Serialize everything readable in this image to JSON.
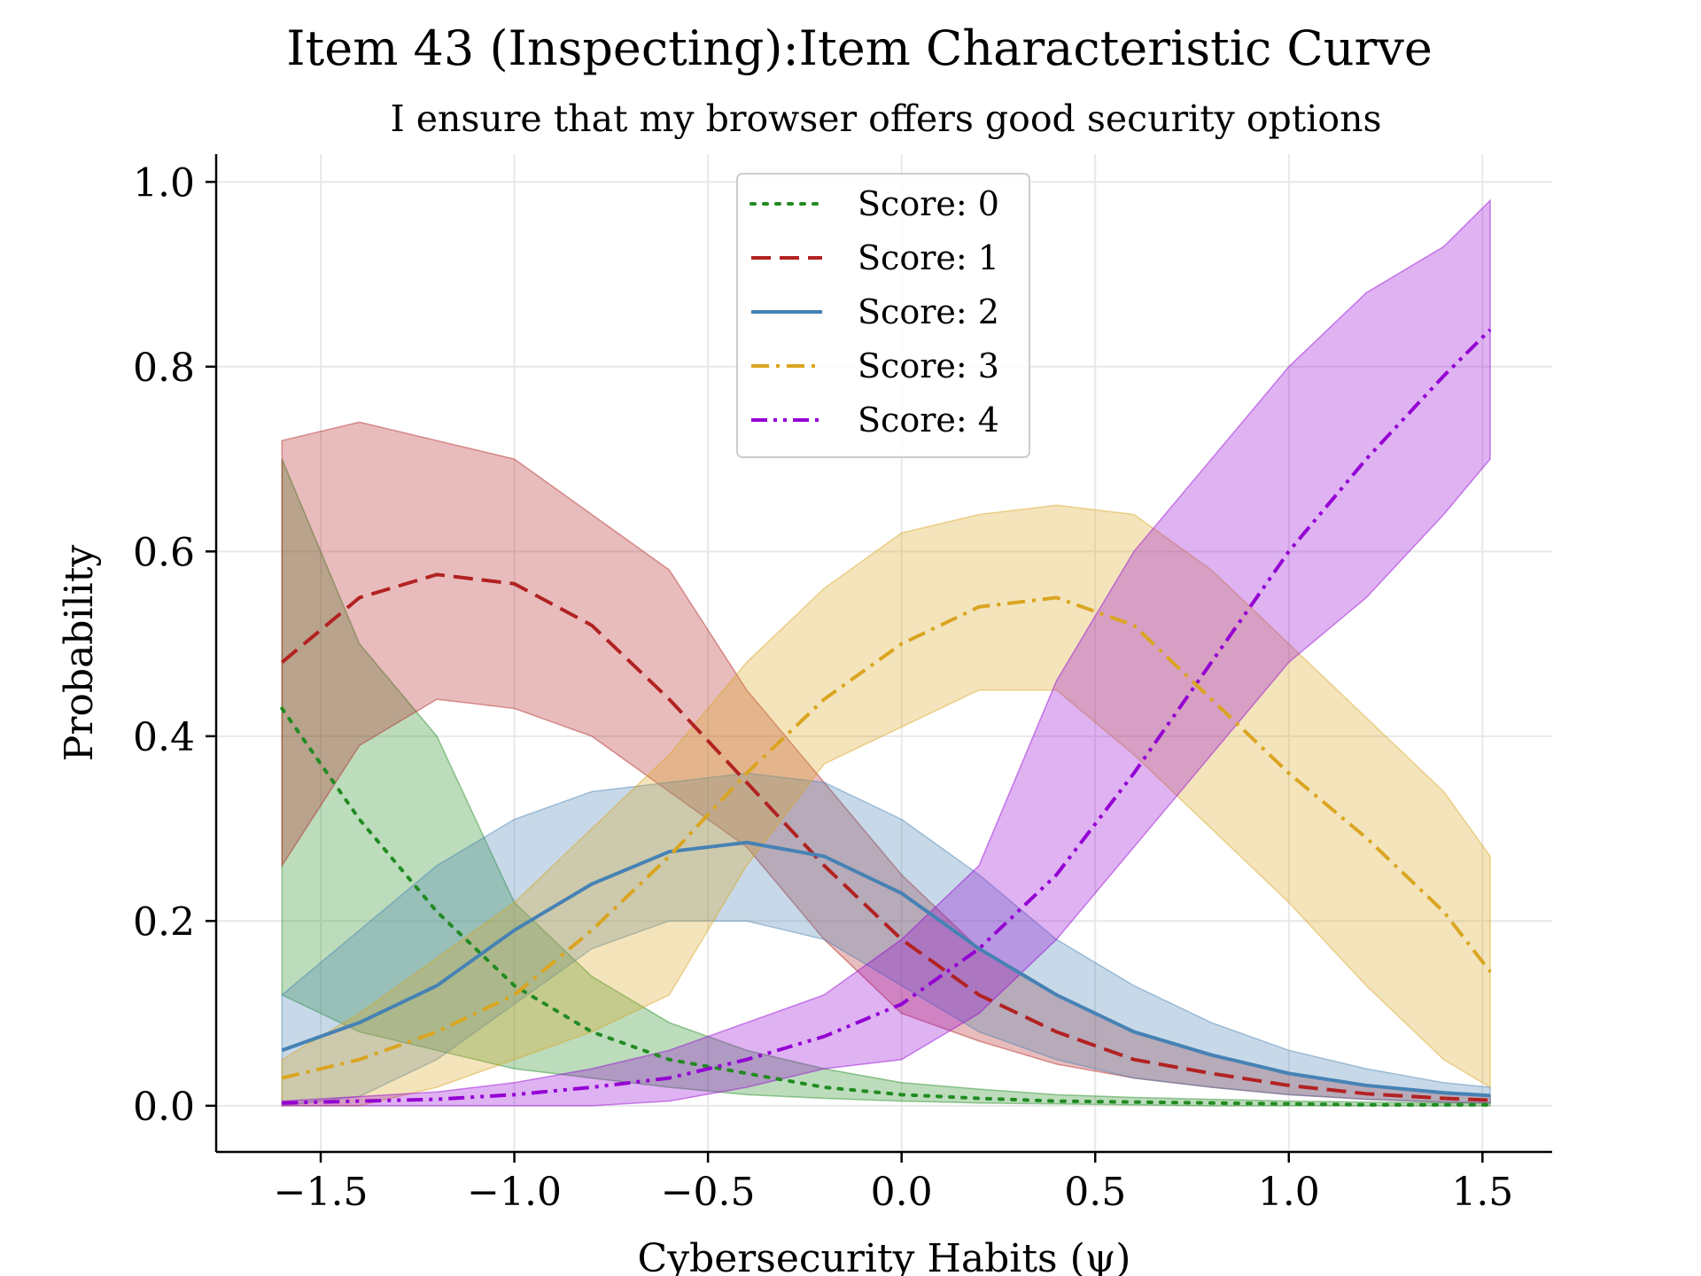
{
  "chart_data": {
    "type": "line",
    "title": "Item 43 (Inspecting):Item Characteristic Curve",
    "subtitle": "I ensure that my browser offers good security options",
    "xlabel": "Cybersecurity Habits (ψ)",
    "ylabel": "Probability",
    "xlim": [
      -1.77,
      1.68
    ],
    "ylim": [
      -0.05,
      1.03
    ],
    "xticks": [
      -1.5,
      -1.0,
      -0.5,
      0.0,
      0.5,
      1.0,
      1.5
    ],
    "xtick_labels": [
      "−1.5",
      "−1.0",
      "−0.5",
      "0.0",
      "0.5",
      "1.0",
      "1.5"
    ],
    "yticks": [
      0.0,
      0.2,
      0.4,
      0.6,
      0.8,
      1.0
    ],
    "ytick_labels": [
      "0.0",
      "0.2",
      "0.4",
      "0.6",
      "0.8",
      "1.0"
    ],
    "grid": true,
    "legend_position": "top-center",
    "x": [
      -1.6,
      -1.4,
      -1.2,
      -1.0,
      -0.8,
      -0.6,
      -0.4,
      -0.2,
      0.0,
      0.2,
      0.4,
      0.6,
      0.8,
      1.0,
      1.2,
      1.4,
      1.52
    ],
    "series": [
      {
        "name": "Score: 0",
        "color": "#228B22",
        "dash": "dotted",
        "values": [
          0.43,
          0.31,
          0.21,
          0.13,
          0.08,
          0.05,
          0.035,
          0.02,
          0.012,
          0.008,
          0.005,
          0.004,
          0.003,
          0.002,
          0.001,
          0.001,
          0.001
        ],
        "lower": [
          0.12,
          0.08,
          0.06,
          0.04,
          0.03,
          0.02,
          0.012,
          0.008,
          0.005,
          0.003,
          0.002,
          0.001,
          0.0,
          0.0,
          0.0,
          0.0,
          0.0
        ],
        "upper": [
          0.7,
          0.5,
          0.4,
          0.22,
          0.14,
          0.09,
          0.06,
          0.04,
          0.025,
          0.018,
          0.012,
          0.009,
          0.007,
          0.005,
          0.004,
          0.003,
          0.003
        ]
      },
      {
        "name": "Score: 1",
        "color": "#B22222",
        "dash": "dashed",
        "values": [
          0.48,
          0.55,
          0.575,
          0.565,
          0.52,
          0.44,
          0.35,
          0.26,
          0.18,
          0.12,
          0.08,
          0.05,
          0.035,
          0.022,
          0.013,
          0.008,
          0.006
        ],
        "lower": [
          0.26,
          0.39,
          0.44,
          0.43,
          0.4,
          0.34,
          0.28,
          0.18,
          0.1,
          0.07,
          0.045,
          0.03,
          0.02,
          0.012,
          0.007,
          0.004,
          0.003
        ],
        "upper": [
          0.72,
          0.74,
          0.72,
          0.7,
          0.64,
          0.58,
          0.45,
          0.35,
          0.25,
          0.17,
          0.12,
          0.08,
          0.055,
          0.035,
          0.022,
          0.014,
          0.011
        ]
      },
      {
        "name": "Score: 2",
        "color": "#4682B4",
        "dash": "solid",
        "values": [
          0.06,
          0.09,
          0.13,
          0.19,
          0.24,
          0.275,
          0.285,
          0.27,
          0.23,
          0.17,
          0.12,
          0.08,
          0.055,
          0.035,
          0.022,
          0.014,
          0.011
        ],
        "lower": [
          0.0,
          0.01,
          0.05,
          0.11,
          0.17,
          0.2,
          0.2,
          0.18,
          0.13,
          0.08,
          0.05,
          0.03,
          0.02,
          0.012,
          0.007,
          0.004,
          0.003
        ],
        "upper": [
          0.12,
          0.19,
          0.26,
          0.31,
          0.34,
          0.35,
          0.36,
          0.35,
          0.31,
          0.25,
          0.18,
          0.13,
          0.09,
          0.06,
          0.04,
          0.025,
          0.02
        ]
      },
      {
        "name": "Score: 3",
        "color": "#DAA520",
        "dash": "dashdot",
        "values": [
          0.03,
          0.05,
          0.08,
          0.12,
          0.19,
          0.27,
          0.36,
          0.44,
          0.5,
          0.54,
          0.55,
          0.52,
          0.44,
          0.36,
          0.29,
          0.21,
          0.145
        ],
        "lower": [
          0.0,
          0.0,
          0.02,
          0.05,
          0.08,
          0.12,
          0.26,
          0.37,
          0.41,
          0.45,
          0.45,
          0.38,
          0.3,
          0.22,
          0.13,
          0.05,
          0.02
        ],
        "upper": [
          0.05,
          0.1,
          0.16,
          0.22,
          0.3,
          0.38,
          0.48,
          0.56,
          0.62,
          0.64,
          0.65,
          0.64,
          0.58,
          0.5,
          0.42,
          0.34,
          0.27
        ]
      },
      {
        "name": "Score: 4",
        "color": "#9400D3",
        "dash": "dashdotdot",
        "values": [
          0.003,
          0.005,
          0.007,
          0.012,
          0.02,
          0.03,
          0.05,
          0.075,
          0.11,
          0.17,
          0.25,
          0.36,
          0.48,
          0.6,
          0.7,
          0.79,
          0.84
        ],
        "lower": [
          0.0,
          0.0,
          0.0,
          0.0,
          0.0,
          0.005,
          0.02,
          0.04,
          0.05,
          0.1,
          0.18,
          0.28,
          0.38,
          0.48,
          0.55,
          0.64,
          0.7
        ],
        "upper": [
          0.005,
          0.01,
          0.015,
          0.025,
          0.04,
          0.06,
          0.09,
          0.12,
          0.18,
          0.26,
          0.46,
          0.6,
          0.7,
          0.8,
          0.88,
          0.93,
          0.98
        ]
      }
    ]
  }
}
